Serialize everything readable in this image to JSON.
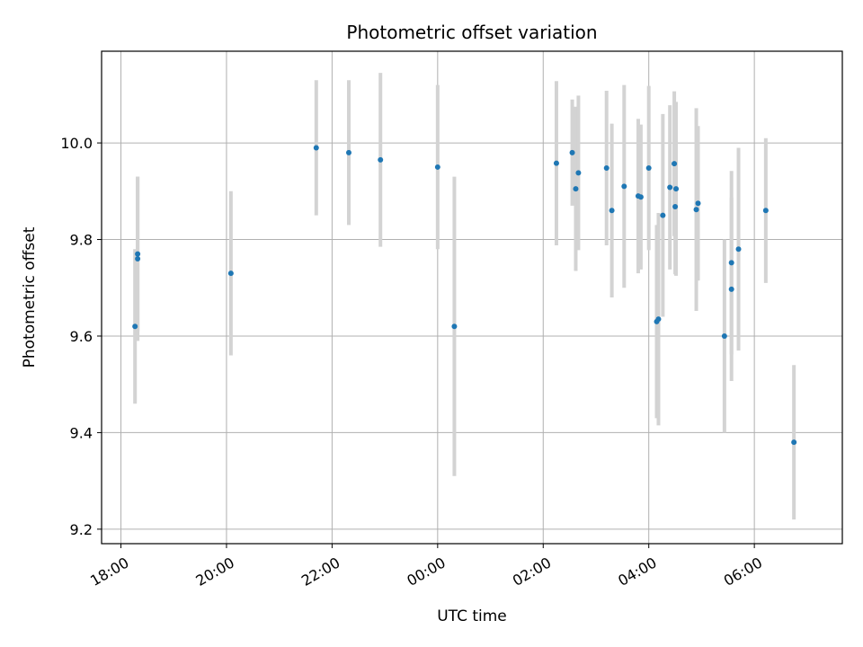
{
  "chart_data": {
    "type": "scatter",
    "title": "Photometric offset variation",
    "xlabel": "UTC time",
    "ylabel": "Photometric offset",
    "x_ticks": [
      "18:00",
      "20:00",
      "22:00",
      "00:00",
      "02:00",
      "04:00",
      "06:00"
    ],
    "y_ticks": [
      "9.2",
      "9.4",
      "9.6",
      "9.8",
      "10.0"
    ],
    "y_tick_values": [
      9.2,
      9.4,
      9.6,
      9.8,
      10.0
    ],
    "xlim": [
      "17:38",
      "07:40"
    ],
    "ylim": [
      9.17,
      10.19
    ],
    "grid": true,
    "error_bars": true,
    "marker_color": "#1f77b4",
    "errorbar_color": "#d3d3d3",
    "points": [
      {
        "x": "18:16",
        "y": 9.62,
        "err": 0.16
      },
      {
        "x": "18:19",
        "y": 9.77,
        "err": 0.16
      },
      {
        "x": "18:19",
        "y": 9.76,
        "err": 0.17
      },
      {
        "x": "20:05",
        "y": 9.73,
        "err": 0.17
      },
      {
        "x": "21:42",
        "y": 9.99,
        "err": 0.14
      },
      {
        "x": "22:19",
        "y": 9.98,
        "err": 0.15
      },
      {
        "x": "22:55",
        "y": 9.965,
        "err": 0.18
      },
      {
        "x": "00:00",
        "y": 9.95,
        "err": 0.17
      },
      {
        "x": "00:19",
        "y": 9.62,
        "err": 0.31
      },
      {
        "x": "02:15",
        "y": 9.958,
        "err": 0.17
      },
      {
        "x": "02:33",
        "y": 9.98,
        "err": 0.11
      },
      {
        "x": "02:37",
        "y": 9.905,
        "err": 0.17
      },
      {
        "x": "02:40",
        "y": 9.938,
        "err": 0.16
      },
      {
        "x": "03:12",
        "y": 9.948,
        "err": 0.16
      },
      {
        "x": "03:18",
        "y": 9.86,
        "err": 0.18
      },
      {
        "x": "03:32",
        "y": 9.91,
        "err": 0.21
      },
      {
        "x": "03:48",
        "y": 9.89,
        "err": 0.16
      },
      {
        "x": "03:51",
        "y": 9.888,
        "err": 0.15
      },
      {
        "x": "04:00",
        "y": 9.948,
        "err": 0.17
      },
      {
        "x": "04:09",
        "y": 9.63,
        "err": 0.2
      },
      {
        "x": "04:11",
        "y": 9.635,
        "err": 0.22
      },
      {
        "x": "04:16",
        "y": 9.85,
        "err": 0.21
      },
      {
        "x": "04:24",
        "y": 9.908,
        "err": 0.17
      },
      {
        "x": "04:29",
        "y": 9.957,
        "err": 0.15
      },
      {
        "x": "04:30",
        "y": 9.868,
        "err": 0.14
      },
      {
        "x": "04:31",
        "y": 9.905,
        "err": 0.18
      },
      {
        "x": "04:54",
        "y": 9.862,
        "err": 0.21
      },
      {
        "x": "04:56",
        "y": 9.875,
        "err": 0.16
      },
      {
        "x": "05:26",
        "y": 9.6,
        "err": 0.2
      },
      {
        "x": "05:34",
        "y": 9.752,
        "err": 0.19
      },
      {
        "x": "05:34",
        "y": 9.697,
        "err": 0.19
      },
      {
        "x": "05:42",
        "y": 9.78,
        "err": 0.21
      },
      {
        "x": "06:13",
        "y": 9.86,
        "err": 0.15
      },
      {
        "x": "06:45",
        "y": 9.38,
        "err": 0.16
      }
    ]
  }
}
